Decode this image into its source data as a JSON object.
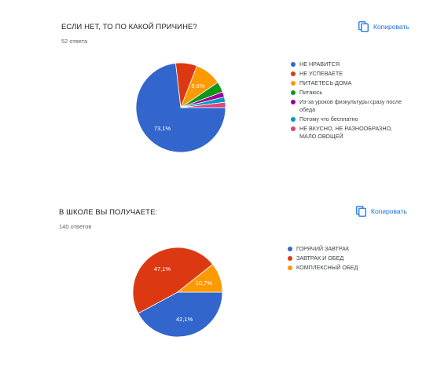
{
  "copy_label": "Копировать",
  "icons": {
    "copy": "copy-icon"
  },
  "questions": [
    {
      "title": "ЕСЛИ НЕТ, ТО ПО КАКОЙ ПРИЧИНЕ?",
      "count": "52 ответа",
      "chart_data": {
        "type": "pie",
        "title": "ЕСЛИ НЕТ, ТО ПО КАКОЙ ПРИЧИНЕ?",
        "legend_position": "right",
        "slices": [
          {
            "label": "НЕ НРАВИТСЯ",
            "value": 73.1,
            "color": "#3366cc",
            "data_label": "73,1%"
          },
          {
            "label": "НЕ УСПЕВАЕТЕ",
            "value": 7.7,
            "color": "#dc3912",
            "data_label": ""
          },
          {
            "label": "ПИТАЕТЕСЬ ДОМА",
            "value": 9.6,
            "color": "#ff9900",
            "data_label": "9,6%"
          },
          {
            "label": "Питаюсь",
            "value": 3.8,
            "color": "#109618",
            "data_label": ""
          },
          {
            "label": "Из-за уроков физкультуры сразу после обеда",
            "value": 1.9,
            "color": "#990099",
            "data_label": ""
          },
          {
            "label": "Потому что бесплатно",
            "value": 1.9,
            "color": "#0099c6",
            "data_label": ""
          },
          {
            "label": "НЕ ВКУСНО, НЕ РАЗНООБРАЗНО, МАЛО ОВОЩЕЙ",
            "value": 1.9,
            "color": "#dd4477",
            "data_label": ""
          }
        ]
      }
    },
    {
      "title": "В ШКОЛЕ ВЫ ПОЛУЧАЕТЕ:",
      "count": "140 ответов",
      "chart_data": {
        "type": "pie",
        "title": "В ШКОЛЕ ВЫ ПОЛУЧАЕТЕ:",
        "legend_position": "right",
        "slices": [
          {
            "label": "ГОРЯЧИЙ ЗАВТРАК",
            "value": 42.1,
            "color": "#3366cc",
            "data_label": "42,1%"
          },
          {
            "label": "ЗАВТРАК И ОБЕД",
            "value": 47.1,
            "color": "#dc3912",
            "data_label": "47,1%"
          },
          {
            "label": "КОМПЛЕКСНЫЙ ОБЕД",
            "value": 10.7,
            "color": "#ff9900",
            "data_label": "10,7%"
          }
        ]
      }
    }
  ]
}
